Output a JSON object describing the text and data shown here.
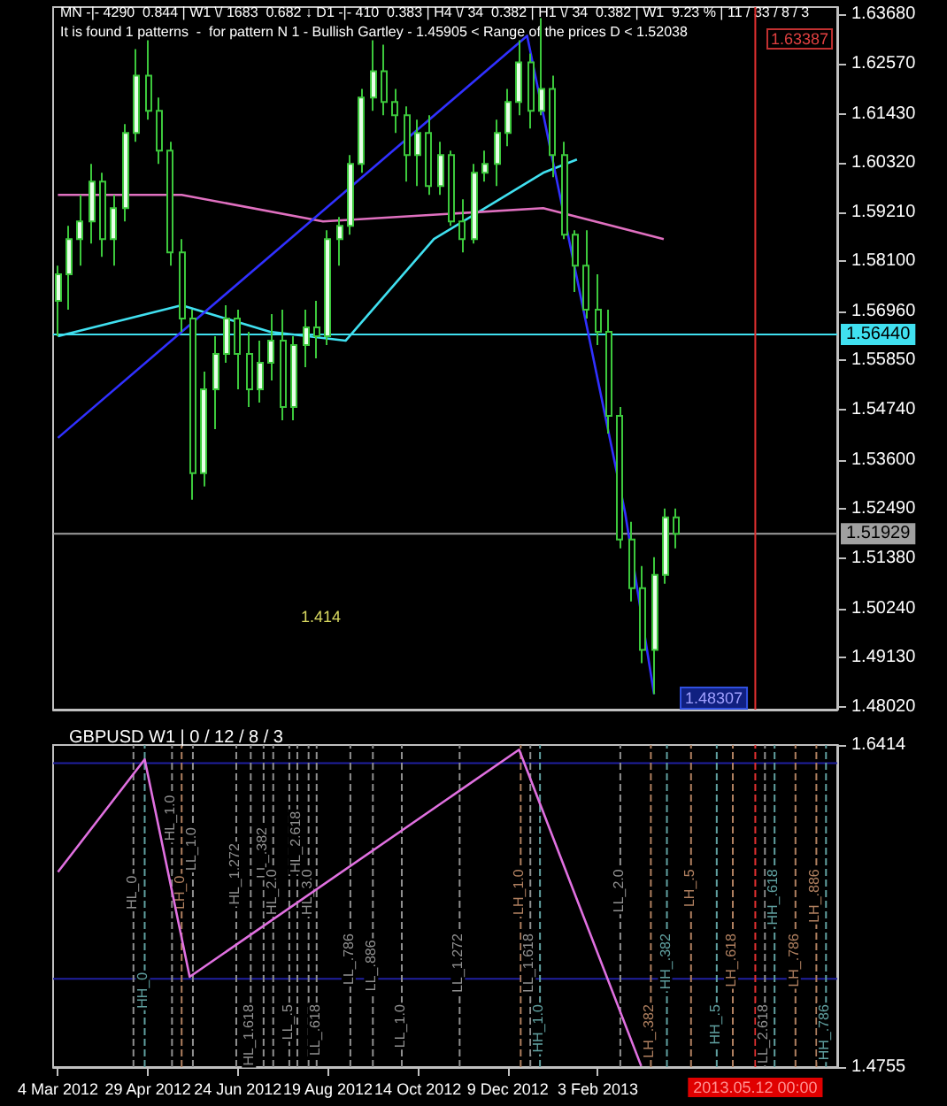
{
  "chart_data": [
    {
      "type": "candlestick",
      "tick_labels": "y",
      "grid": false,
      "annotations": [
        "MN -|- 4290  0.844 | W1 \\/ 1683  0.682 ↓ D1 -|- 410  0.383 | H4 \\/ 34  0.382 | H1 \\/ 34  0.382 | W1  9.23 % | 11 / 33 / 8 / 3",
        "It is found 1 patterns  -  for pattern N 1 - Bullish Gartley - 1.45905 < Range of the prices D < 1.52038",
        "1.63387",
        "1.48307",
        "1.414"
      ],
      "xlim": [
        "2012-03-01",
        "2013-07-02"
      ],
      "ylim": [
        1.4795,
        1.6385
      ],
      "yticks": [
        {
          "value": 1.4802,
          "label": "1.48020"
        },
        {
          "value": 1.4913,
          "label": "1.49130"
        },
        {
          "value": 1.5024,
          "label": "1.50240"
        },
        {
          "value": 1.5138,
          "label": "1.51380"
        },
        {
          "value": 1.5249,
          "label": "1.52490"
        },
        {
          "value": 1.536,
          "label": "1.53600"
        },
        {
          "value": 1.5474,
          "label": "1.54740"
        },
        {
          "value": 1.5585,
          "label": "1.55850"
        },
        {
          "value": 1.5696,
          "label": "1.56960"
        },
        {
          "value": 1.581,
          "label": "1.58100"
        },
        {
          "value": 1.5921,
          "label": "1.59210"
        },
        {
          "value": 1.6032,
          "label": "1.60320"
        },
        {
          "value": 1.6143,
          "label": "1.61430"
        },
        {
          "value": 1.6257,
          "label": "1.62570"
        },
        {
          "value": 1.6368,
          "label": "1.63680"
        }
      ],
      "x": [
        "2012-03-04",
        "2012-03-11",
        "2012-03-18",
        "2012-03-25",
        "2012-04-01",
        "2012-04-08",
        "2012-04-15",
        "2012-04-22",
        "2012-04-29",
        "2012-05-06",
        "2012-05-13",
        "2012-05-20",
        "2012-05-27",
        "2012-06-03",
        "2012-06-10",
        "2012-06-17",
        "2012-06-24",
        "2012-07-01",
        "2012-07-08",
        "2012-07-15",
        "2012-07-22",
        "2012-07-29",
        "2012-08-05",
        "2012-08-12",
        "2012-08-19",
        "2012-08-26",
        "2012-09-02",
        "2012-09-09",
        "2012-09-16",
        "2012-09-23",
        "2012-09-30",
        "2012-10-07",
        "2012-10-14",
        "2012-10-21",
        "2012-10-28",
        "2012-11-04",
        "2012-11-11",
        "2012-11-18",
        "2012-11-25",
        "2012-12-02",
        "2012-12-09",
        "2012-12-16",
        "2012-12-23",
        "2012-12-30",
        "2013-01-06",
        "2013-01-13",
        "2013-01-20",
        "2013-01-27",
        "2013-02-03",
        "2013-02-10",
        "2013-02-17",
        "2013-02-24",
        "2013-03-03",
        "2013-03-10",
        "2013-03-17",
        "2013-03-24"
      ],
      "ohlc": [
        [
          1.572,
          1.58,
          1.564,
          1.578
        ],
        [
          1.578,
          1.589,
          1.57,
          1.586
        ],
        [
          1.586,
          1.596,
          1.58,
          1.59
        ],
        [
          1.59,
          1.603,
          1.585,
          1.599
        ],
        [
          1.599,
          1.601,
          1.582,
          1.586
        ],
        [
          1.586,
          1.596,
          1.58,
          1.593
        ],
        [
          1.593,
          1.612,
          1.59,
          1.61
        ],
        [
          1.61,
          1.629,
          1.608,
          1.623
        ],
        [
          1.623,
          1.631,
          1.613,
          1.615
        ],
        [
          1.615,
          1.618,
          1.603,
          1.606
        ],
        [
          1.606,
          1.608,
          1.58,
          1.583
        ],
        [
          1.583,
          1.586,
          1.565,
          1.568
        ],
        [
          1.568,
          1.57,
          1.527,
          1.533
        ],
        [
          1.533,
          1.556,
          1.53,
          1.552
        ],
        [
          1.552,
          1.564,
          1.543,
          1.56
        ],
        [
          1.56,
          1.571,
          1.558,
          1.568
        ],
        [
          1.568,
          1.57,
          1.552,
          1.56
        ],
        [
          1.56,
          1.565,
          1.548,
          1.552
        ],
        [
          1.552,
          1.563,
          1.549,
          1.558
        ],
        [
          1.558,
          1.569,
          1.554,
          1.563
        ],
        [
          1.563,
          1.57,
          1.545,
          1.548
        ],
        [
          1.548,
          1.564,
          1.545,
          1.562
        ],
        [
          1.562,
          1.57,
          1.557,
          1.566
        ],
        [
          1.566,
          1.572,
          1.559,
          1.564
        ],
        [
          1.564,
          1.588,
          1.562,
          1.586
        ],
        [
          1.586,
          1.591,
          1.58,
          1.589
        ],
        [
          1.589,
          1.605,
          1.587,
          1.603
        ],
        [
          1.603,
          1.62,
          1.601,
          1.618
        ],
        [
          1.618,
          1.631,
          1.615,
          1.624
        ],
        [
          1.624,
          1.63,
          1.614,
          1.617
        ],
        [
          1.617,
          1.62,
          1.61,
          1.614
        ],
        [
          1.614,
          1.616,
          1.599,
          1.605
        ],
        [
          1.605,
          1.613,
          1.598,
          1.61
        ],
        [
          1.61,
          1.614,
          1.596,
          1.598
        ],
        [
          1.598,
          1.608,
          1.596,
          1.605
        ],
        [
          1.605,
          1.606,
          1.589,
          1.59
        ],
        [
          1.59,
          1.595,
          1.583,
          1.586
        ],
        [
          1.586,
          1.603,
          1.585,
          1.601
        ],
        [
          1.601,
          1.606,
          1.599,
          1.603
        ],
        [
          1.603,
          1.613,
          1.598,
          1.61
        ],
        [
          1.61,
          1.62,
          1.607,
          1.617
        ],
        [
          1.617,
          1.631,
          1.614,
          1.626
        ],
        [
          1.626,
          1.628,
          1.611,
          1.615
        ],
        [
          1.615,
          1.636,
          1.614,
          1.62
        ],
        [
          1.62,
          1.623,
          1.6,
          1.605
        ],
        [
          1.605,
          1.608,
          1.586,
          1.587
        ],
        [
          1.587,
          1.588,
          1.574,
          1.58
        ],
        [
          1.58,
          1.588,
          1.568,
          1.57
        ],
        [
          1.57,
          1.578,
          1.562,
          1.565
        ],
        [
          1.565,
          1.57,
          1.542,
          1.546
        ],
        [
          1.546,
          1.548,
          1.516,
          1.518
        ],
        [
          1.518,
          1.522,
          1.504,
          1.507
        ],
        [
          1.507,
          1.512,
          1.49,
          1.493
        ],
        [
          1.493,
          1.514,
          1.483,
          1.51
        ],
        [
          1.51,
          1.525,
          1.508,
          1.523
        ],
        [
          1.523,
          1.525,
          1.516,
          1.5193
        ]
      ],
      "series": [
        {
          "type": "line",
          "color": "#40e0f0",
          "x": [
            "2012-03-04",
            "2012-05-20",
            "2012-07-14",
            "2012-08-30",
            "2012-10-24",
            "2012-12-31",
            "2013-01-21"
          ],
          "values": [
            1.564,
            1.571,
            1.565,
            1.563,
            1.586,
            1.601,
            1.604
          ]
        },
        {
          "type": "line",
          "color": "#e070c0",
          "x": [
            "2012-03-04",
            "2012-05-20",
            "2012-08-16",
            "2012-12-31",
            "2013-03-16"
          ],
          "values": [
            1.596,
            1.596,
            1.59,
            1.593,
            1.586
          ]
        },
        {
          "type": "line",
          "color": "#3030ff",
          "x": [
            "2012-03-04",
            "2012-12-21",
            "2013-02-20",
            "2013-03-10"
          ],
          "values": [
            1.541,
            1.632,
            1.524,
            1.483
          ]
        }
      ],
      "ref_lines": [
        {
          "axis": "y",
          "value": 1.5644,
          "label": "1.56440",
          "color": "#40e0f0"
        },
        {
          "axis": "y",
          "value": 1.51929,
          "label": "1.51929",
          "color": "#a0a0a0"
        },
        {
          "axis": "x",
          "value": "2013-05-12",
          "color": "#e03030"
        }
      ]
    },
    {
      "type": "line",
      "title": "GBPUSD W1 | 0 / 12 / 8 / 3",
      "grid": false,
      "xlim": [
        "2012-03-01",
        "2013-07-02"
      ],
      "ylim": [
        1.4755,
        1.6414
      ],
      "yticks": [
        1.4755,
        1.6414
      ],
      "xticks": [
        {
          "value": "2012-03-04",
          "label": "4 Mar 2012"
        },
        {
          "value": "2012-04-29",
          "label": "29 Apr 2012"
        },
        {
          "value": "2012-06-24",
          "label": "24 Jun 2012"
        },
        {
          "value": "2012-08-19",
          "label": "19 Aug 2012"
        },
        {
          "value": "2012-10-14",
          "label": "14 Oct 2012"
        },
        {
          "value": "2012-12-09",
          "label": "9 Dec 2012"
        },
        {
          "value": "2013-02-03",
          "label": "3 Feb 2013"
        }
      ],
      "series": [
        {
          "color": "#e070e0",
          "x": [
            "2012-03-04",
            "2012-04-27",
            "2012-05-25",
            "2012-12-16",
            "2013-03-02"
          ],
          "values": [
            1.576,
            1.634,
            1.522,
            1.639,
            1.476
          ]
        }
      ],
      "ref_lines": [
        {
          "axis": "y",
          "value": 1.632,
          "color": "#2020a0"
        },
        {
          "axis": "y",
          "value": 1.521,
          "color": "#2020a0"
        },
        {
          "axis": "x",
          "value": "2013-05-12",
          "label": "2013.05.12 00:00",
          "color": "#e03030",
          "line_style": "dashed"
        },
        {
          "axis": "x",
          "value": "2012-04-27",
          "label": "HH_0",
          "color": "#60a0a0",
          "line_style": "dashed"
        },
        {
          "axis": "x",
          "value": "2012-04-20",
          "label": "HL_0",
          "color": "#909090",
          "line_style": "dashed"
        },
        {
          "axis": "x",
          "value": "2012-05-14",
          "label": "HL_1.0",
          "color": "#909090",
          "line_style": "dashed"
        },
        {
          "axis": "x",
          "value": "2012-05-20",
          "label": "LH_0",
          "color": "#b08060",
          "line_style": "dashed"
        },
        {
          "axis": "x",
          "value": "2012-05-27",
          "label": "LL_1.0",
          "color": "#909090",
          "line_style": "dashed"
        },
        {
          "axis": "x",
          "value": "2012-06-23",
          "label": "HL_1.272",
          "color": "#909090",
          "line_style": "dashed"
        },
        {
          "axis": "x",
          "value": "2012-07-02",
          "label": "HL_1.618",
          "color": "#909090",
          "line_style": "dashed"
        },
        {
          "axis": "x",
          "value": "2012-07-10",
          "label": "LL_.382",
          "color": "#909090",
          "line_style": "dashed"
        },
        {
          "axis": "x",
          "value": "2012-07-16",
          "label": "HL_2.0",
          "color": "#909090",
          "line_style": "dashed"
        },
        {
          "axis": "x",
          "value": "2012-07-26",
          "label": "LL_.5",
          "color": "#909090",
          "line_style": "dashed"
        },
        {
          "axis": "x",
          "value": "2012-07-31",
          "label": "HL_2.618",
          "color": "#909090",
          "line_style": "dashed"
        },
        {
          "axis": "x",
          "value": "2012-08-07",
          "label": "HL_3.0",
          "color": "#909090",
          "line_style": "dashed"
        },
        {
          "axis": "x",
          "value": "2012-08-12",
          "label": "LL_.618",
          "color": "#909090",
          "line_style": "dashed"
        },
        {
          "axis": "x",
          "value": "2012-09-02",
          "label": "LL_.786",
          "color": "#909090",
          "line_style": "dashed"
        },
        {
          "axis": "x",
          "value": "2012-09-16",
          "label": "LL_.886",
          "color": "#909090",
          "line_style": "dashed"
        },
        {
          "axis": "x",
          "value": "2012-10-04",
          "label": "LL_1.0",
          "color": "#909090",
          "line_style": "dashed"
        },
        {
          "axis": "x",
          "value": "2012-11-09",
          "label": "LL_1.272",
          "color": "#909090",
          "line_style": "dashed"
        },
        {
          "axis": "x",
          "value": "2012-12-17",
          "label": "LH_1.0",
          "color": "#b08060",
          "line_style": "dashed"
        },
        {
          "axis": "x",
          "value": "2012-12-29",
          "label": "HH_1.0",
          "color": "#60a0a0",
          "line_style": "dashed"
        },
        {
          "axis": "x",
          "value": "2012-12-23",
          "label": "LL_1.618",
          "color": "#909090",
          "line_style": "dashed"
        },
        {
          "axis": "x",
          "value": "2013-02-17",
          "label": "LL_2.0",
          "color": "#909090",
          "line_style": "dashed"
        },
        {
          "axis": "x",
          "value": "2013-03-08",
          "label": "LH_.382",
          "color": "#b08060",
          "line_style": "dashed"
        },
        {
          "axis": "x",
          "value": "2013-03-18",
          "label": "HH_.382",
          "color": "#60a0a0",
          "line_style": "dashed"
        },
        {
          "axis": "x",
          "value": "2013-04-02",
          "label": "LH_.5",
          "color": "#b08060",
          "line_style": "dashed"
        },
        {
          "axis": "x",
          "value": "2013-04-18",
          "label": "HH_.5",
          "color": "#60a0a0",
          "line_style": "dashed"
        },
        {
          "axis": "x",
          "value": "2013-04-28",
          "label": "LH_.618",
          "color": "#b08060",
          "line_style": "dashed"
        },
        {
          "axis": "x",
          "value": "2013-05-18",
          "label": "LL_2.618",
          "color": "#909090",
          "line_style": "dashed"
        },
        {
          "axis": "x",
          "value": "2013-05-24",
          "label": "HH_.618",
          "color": "#60a0a0",
          "line_style": "dashed"
        },
        {
          "axis": "x",
          "value": "2013-06-06",
          "label": "LH_.786",
          "color": "#b08060",
          "line_style": "dashed"
        },
        {
          "axis": "x",
          "value": "2013-06-25",
          "label": "HH_.786",
          "color": "#60a0a0",
          "line_style": "dashed"
        },
        {
          "axis": "x",
          "value": "2013-06-19",
          "label": "LH_.886",
          "color": "#b08060",
          "line_style": "dashed"
        }
      ]
    }
  ]
}
